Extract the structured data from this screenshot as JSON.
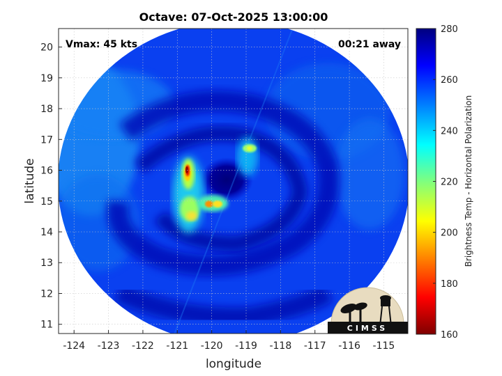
{
  "chart_data": {
    "type": "heatmap",
    "title": "Octave: 07-Oct-2025 13:00:00",
    "xlabel": "longitude",
    "ylabel": "latitude",
    "xlim": [
      -124.45,
      -114.3
    ],
    "ylim": [
      10.7,
      20.6
    ],
    "x_ticks": [
      -124,
      -123,
      -122,
      -121,
      -120,
      -119,
      -118,
      -117,
      -116,
      -115
    ],
    "y_ticks": [
      11,
      12,
      13,
      14,
      15,
      16,
      17,
      18,
      19,
      20
    ],
    "grid": true,
    "colorbar": {
      "label": "Brightness Temp - Horizontal Polarization",
      "range": [
        160,
        280
      ],
      "ticks": [
        160,
        180,
        200,
        220,
        240,
        260,
        280
      ],
      "colormap": [
        "#7f0000",
        "#ff0000",
        "#ffff00",
        "#7fff7f",
        "#00ffff",
        "#007fff",
        "#0000ff",
        "#00007f"
      ]
    },
    "annotations": {
      "vmax": "Vmax: 45 kts",
      "time_away": "00:21 away"
    },
    "swath_extent": {
      "lon": [
        -124.5,
        -114.4
      ],
      "lat": [
        10.6,
        20.8
      ]
    },
    "storm_center": {
      "lon": -120.1,
      "lat": 15.6
    },
    "cold_features": [
      {
        "lon": -120.75,
        "lat": 16.05,
        "min_temp_k": 165
      },
      {
        "lon": -120.05,
        "lat": 14.95,
        "min_temp_k": 195
      },
      {
        "lon": -119.45,
        "lat": 14.9,
        "min_temp_k": 215
      },
      {
        "lon": -118.85,
        "lat": 16.65,
        "min_temp_k": 225
      },
      {
        "lon": -120.6,
        "lat": 14.5,
        "min_temp_k": 225
      }
    ]
  },
  "logo": {
    "text": "CIMSS",
    "colors": {
      "bg": "#e8dcc0",
      "silhouette": "#111111"
    }
  }
}
